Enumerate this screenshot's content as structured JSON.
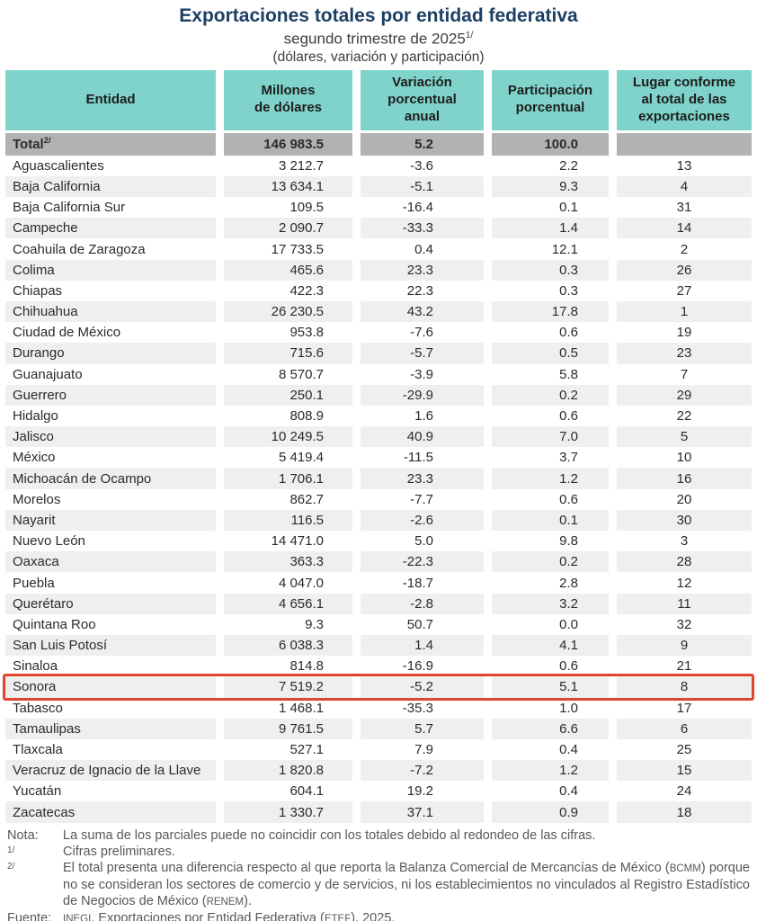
{
  "header": {
    "title": "Exportaciones totales por entidad federativa",
    "subtitle": "segundo trimestre de 2025",
    "subtitle_sup": "1/",
    "units_line": "(dólares, variación y participación)"
  },
  "chart_data": {
    "type": "table",
    "columns": [
      "Entidad",
      "Millones\nde dólares",
      "Variación\nporcentual\nanual",
      "Participación\nporcentual",
      "Lugar conforme\nal total de las\nexportaciones"
    ],
    "total_row": {
      "entidad": "Total",
      "entidad_sup": "2/",
      "millones": "146 983.5",
      "variacion": "5.2",
      "participacion": "100.0",
      "lugar": ""
    },
    "rows": [
      {
        "entidad": "Aguascalientes",
        "millones": "3 212.7",
        "variacion": "-3.6",
        "participacion": "2.2",
        "lugar": "13"
      },
      {
        "entidad": "Baja California",
        "millones": "13 634.1",
        "variacion": "-5.1",
        "participacion": "9.3",
        "lugar": "4"
      },
      {
        "entidad": "Baja California Sur",
        "millones": "109.5",
        "variacion": "-16.4",
        "participacion": "0.1",
        "lugar": "31"
      },
      {
        "entidad": "Campeche",
        "millones": "2 090.7",
        "variacion": "-33.3",
        "participacion": "1.4",
        "lugar": "14"
      },
      {
        "entidad": "Coahuila de Zaragoza",
        "millones": "17 733.5",
        "variacion": "0.4",
        "participacion": "12.1",
        "lugar": "2"
      },
      {
        "entidad": "Colima",
        "millones": "465.6",
        "variacion": "23.3",
        "participacion": "0.3",
        "lugar": "26"
      },
      {
        "entidad": "Chiapas",
        "millones": "422.3",
        "variacion": "22.3",
        "participacion": "0.3",
        "lugar": "27"
      },
      {
        "entidad": "Chihuahua",
        "millones": "26 230.5",
        "variacion": "43.2",
        "participacion": "17.8",
        "lugar": "1"
      },
      {
        "entidad": "Ciudad de México",
        "millones": "953.8",
        "variacion": "-7.6",
        "participacion": "0.6",
        "lugar": "19"
      },
      {
        "entidad": "Durango",
        "millones": "715.6",
        "variacion": "-5.7",
        "participacion": "0.5",
        "lugar": "23"
      },
      {
        "entidad": "Guanajuato",
        "millones": "8 570.7",
        "variacion": "-3.9",
        "participacion": "5.8",
        "lugar": "7"
      },
      {
        "entidad": "Guerrero",
        "millones": "250.1",
        "variacion": "-29.9",
        "participacion": "0.2",
        "lugar": "29"
      },
      {
        "entidad": "Hidalgo",
        "millones": "808.9",
        "variacion": "1.6",
        "participacion": "0.6",
        "lugar": "22"
      },
      {
        "entidad": "Jalisco",
        "millones": "10 249.5",
        "variacion": "40.9",
        "participacion": "7.0",
        "lugar": "5"
      },
      {
        "entidad": "México",
        "millones": "5 419.4",
        "variacion": "-11.5",
        "participacion": "3.7",
        "lugar": "10"
      },
      {
        "entidad": "Michoacán de Ocampo",
        "millones": "1 706.1",
        "variacion": "23.3",
        "participacion": "1.2",
        "lugar": "16"
      },
      {
        "entidad": "Morelos",
        "millones": "862.7",
        "variacion": "-7.7",
        "participacion": "0.6",
        "lugar": "20"
      },
      {
        "entidad": "Nayarit",
        "millones": "116.5",
        "variacion": "-2.6",
        "participacion": "0.1",
        "lugar": "30"
      },
      {
        "entidad": "Nuevo León",
        "millones": "14 471.0",
        "variacion": "5.0",
        "participacion": "9.8",
        "lugar": "3"
      },
      {
        "entidad": "Oaxaca",
        "millones": "363.3",
        "variacion": "-22.3",
        "participacion": "0.2",
        "lugar": "28"
      },
      {
        "entidad": "Puebla",
        "millones": "4 047.0",
        "variacion": "-18.7",
        "participacion": "2.8",
        "lugar": "12"
      },
      {
        "entidad": "Querétaro",
        "millones": "4 656.1",
        "variacion": "-2.8",
        "participacion": "3.2",
        "lugar": "11"
      },
      {
        "entidad": "Quintana Roo",
        "millones": "9.3",
        "variacion": "50.7",
        "participacion": "0.0",
        "lugar": "32"
      },
      {
        "entidad": "San Luis Potosí",
        "millones": "6 038.3",
        "variacion": "1.4",
        "participacion": "4.1",
        "lugar": "9"
      },
      {
        "entidad": "Sinaloa",
        "millones": "814.8",
        "variacion": "-16.9",
        "participacion": "0.6",
        "lugar": "21"
      },
      {
        "entidad": "Sonora",
        "millones": "7 519.2",
        "variacion": "-5.2",
        "participacion": "5.1",
        "lugar": "8",
        "highlighted": true
      },
      {
        "entidad": "Tabasco",
        "millones": "1 468.1",
        "variacion": "-35.3",
        "participacion": "1.0",
        "lugar": "17"
      },
      {
        "entidad": "Tamaulipas",
        "millones": "9 761.5",
        "variacion": "5.7",
        "participacion": "6.6",
        "lugar": "6"
      },
      {
        "entidad": "Tlaxcala",
        "millones": "527.1",
        "variacion": "7.9",
        "participacion": "0.4",
        "lugar": "25"
      },
      {
        "entidad": "Veracruz de Ignacio de la Llave",
        "millones": "1 820.8",
        "variacion": "-7.2",
        "participacion": "1.2",
        "lugar": "15"
      },
      {
        "entidad": "Yucatán",
        "millones": "604.1",
        "variacion": "19.2",
        "participacion": "0.4",
        "lugar": "24"
      },
      {
        "entidad": "Zacatecas",
        "millones": "1 330.7",
        "variacion": "37.1",
        "participacion": "0.9",
        "lugar": "18"
      }
    ]
  },
  "notes": [
    {
      "label": "Nota:",
      "sup": false,
      "justify": false,
      "parts": [
        {
          "t": "La suma de los parciales puede no coincidir con los totales debido al redondeo de las cifras."
        }
      ]
    },
    {
      "label": "1/",
      "sup": true,
      "justify": false,
      "parts": [
        {
          "t": "Cifras preliminares."
        }
      ]
    },
    {
      "label": "2/",
      "sup": true,
      "justify": true,
      "parts": [
        {
          "t": "El total presenta una diferencia respecto al que reporta la Balanza Comercial de Mercancías de México ("
        },
        {
          "t": "BCMM",
          "small": true
        },
        {
          "t": ") porque no se consideran los sectores de comercio y de servicios, ni los establecimientos no vinculados al Registro Estadístico de Negocios de México ("
        },
        {
          "t": "RENEM",
          "small": true
        },
        {
          "t": ")."
        }
      ]
    },
    {
      "label": "Fuente:",
      "sup": false,
      "justify": false,
      "parts": [
        {
          "t": "INEGI",
          "small": true
        },
        {
          "t": ". Exportaciones por Entidad Federativa ("
        },
        {
          "t": "ETEF",
          "small": true
        },
        {
          "t": "), 2025."
        }
      ]
    }
  ],
  "colors": {
    "title": "#1c3f63",
    "header_bg": "#7fd3cb",
    "total_row_bg": "#b2b2b2",
    "alt_row_bg": "#efefef",
    "highlight_border": "#e0452f",
    "note_text": "#575757",
    "body_text": "#2b2b2b"
  }
}
